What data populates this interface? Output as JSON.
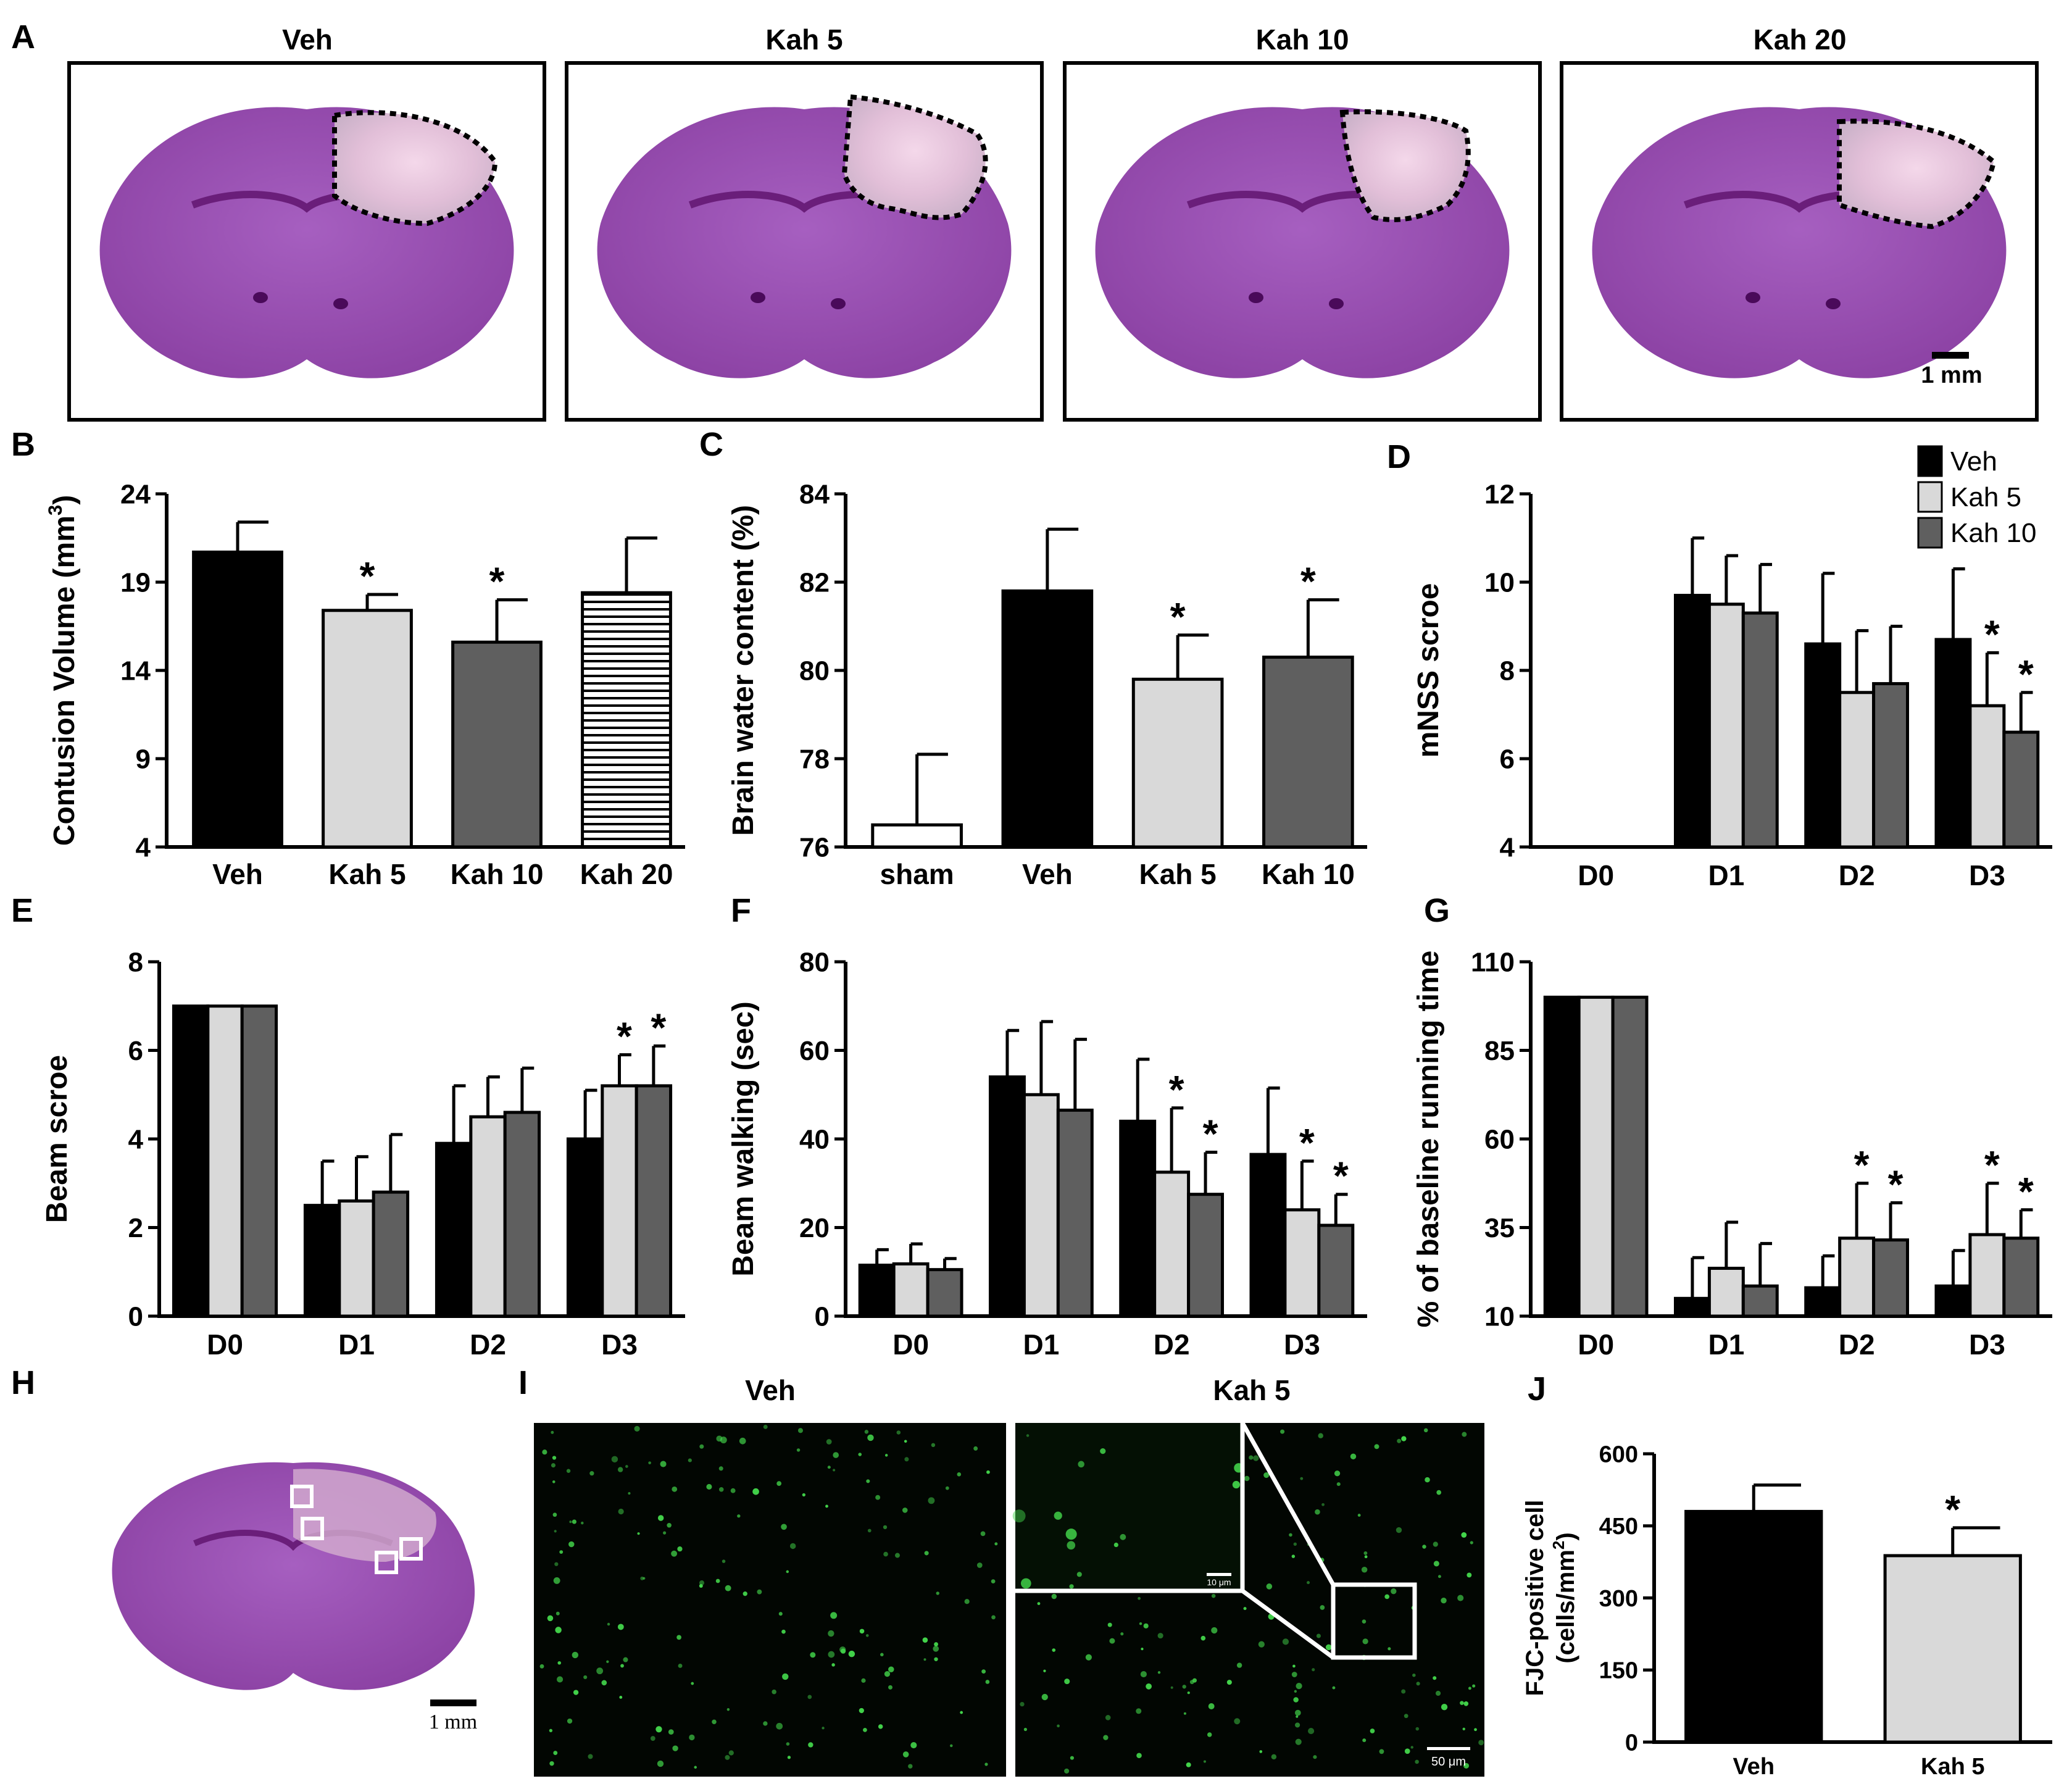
{
  "colors": {
    "veh": "#000000",
    "kah5": "#d9d9d9",
    "kah10": "#5f5f5f",
    "sham": "#ffffff",
    "kah20": "#ffffff",
    "micro_bg": "#020602",
    "micro_cells": "#43d64b",
    "brain": "#9b4fb0"
  },
  "panel_letters": {
    "A": "A",
    "B": "B",
    "C": "C",
    "D": "D",
    "E": "E",
    "F": "F",
    "G": "G",
    "H": "H",
    "I": "I",
    "J": "J"
  },
  "panel_a": {
    "titles": [
      "Veh",
      "Kah 5",
      "Kah 10",
      "Kah 20"
    ],
    "scale_label": "1 mm"
  },
  "panel_h": {
    "scale_label": "1 mm"
  },
  "panel_i": {
    "titles": [
      "Veh",
      "Kah 5"
    ],
    "inset_scale": "10 μm",
    "scale_label": "50 μm"
  },
  "chart_data": [
    {
      "id": "B",
      "type": "bar",
      "ylabel": "Contusion Volume (mm",
      "ylabel_sup": "3",
      "ylabel_end": ")",
      "ylim": [
        4,
        24
      ],
      "yticks": [
        4,
        9,
        14,
        19,
        24
      ],
      "categories": [
        "Veh",
        "Kah 5",
        "Kah 10",
        "Kah 20"
      ],
      "values": [
        20.7,
        17.4,
        15.6,
        18.4
      ],
      "errors": [
        1.7,
        0.9,
        2.4,
        3.1
      ],
      "fills": [
        "veh",
        "kah5",
        "kah10",
        "kah20"
      ],
      "star": [
        false,
        true,
        true,
        false
      ],
      "hatched": [
        false,
        false,
        false,
        true
      ]
    },
    {
      "id": "C",
      "type": "bar",
      "ylabel": "Brain water content (%)",
      "ylim": [
        76,
        84
      ],
      "yticks": [
        76,
        78,
        80,
        82,
        84
      ],
      "categories": [
        "sham",
        "Veh",
        "Kah 5",
        "Kah 10"
      ],
      "values": [
        76.5,
        81.8,
        79.8,
        80.3
      ],
      "errors": [
        1.6,
        1.4,
        1.0,
        1.3
      ],
      "fills": [
        "sham",
        "veh",
        "kah5",
        "kah10"
      ],
      "star": [
        false,
        false,
        true,
        true
      ]
    },
    {
      "id": "D",
      "type": "bar",
      "ylabel": "mNSS scroe",
      "ylim": [
        4,
        12
      ],
      "yticks": [
        4,
        6,
        8,
        10,
        12
      ],
      "categories": [
        "D0",
        "D1",
        "D2",
        "D3"
      ],
      "series": [
        {
          "name": "Veh",
          "fill": "veh",
          "values": [
            4,
            9.7,
            8.6,
            8.7
          ],
          "errors": [
            0,
            1.3,
            1.6,
            1.6
          ],
          "star": [
            false,
            false,
            false,
            false
          ]
        },
        {
          "name": "Kah 5",
          "fill": "kah5",
          "values": [
            4,
            9.5,
            7.5,
            7.2
          ],
          "errors": [
            0,
            1.1,
            1.4,
            1.2
          ],
          "star": [
            false,
            false,
            false,
            true
          ]
        },
        {
          "name": "Kah 10",
          "fill": "kah10",
          "values": [
            4,
            9.3,
            7.7,
            6.6
          ],
          "errors": [
            0,
            1.1,
            1.3,
            0.9
          ],
          "star": [
            false,
            false,
            false,
            true
          ]
        }
      ]
    },
    {
      "id": "E",
      "type": "bar",
      "ylabel": "Beam scroe",
      "ylim": [
        0,
        8
      ],
      "yticks": [
        0,
        2,
        4,
        6,
        8
      ],
      "categories": [
        "D0",
        "D1",
        "D2",
        "D3"
      ],
      "series": [
        {
          "name": "Veh",
          "fill": "veh",
          "values": [
            7,
            2.5,
            3.9,
            4.0
          ],
          "errors": [
            0,
            1.0,
            1.3,
            1.1
          ],
          "star": [
            false,
            false,
            false,
            false
          ]
        },
        {
          "name": "Kah 5",
          "fill": "kah5",
          "values": [
            7,
            2.6,
            4.5,
            5.2
          ],
          "errors": [
            0,
            1.0,
            0.9,
            0.7
          ],
          "star": [
            false,
            false,
            false,
            true
          ]
        },
        {
          "name": "Kah 10",
          "fill": "kah10",
          "values": [
            7,
            2.8,
            4.6,
            5.2
          ],
          "errors": [
            0,
            1.3,
            1.0,
            0.9
          ],
          "star": [
            false,
            false,
            false,
            true
          ]
        }
      ]
    },
    {
      "id": "F",
      "type": "bar",
      "ylabel": "Beam walking (sec)",
      "ylim": [
        0,
        80
      ],
      "yticks": [
        0,
        20,
        40,
        60,
        80
      ],
      "categories": [
        "D0",
        "D1",
        "D2",
        "D3"
      ],
      "series": [
        {
          "name": "Veh",
          "fill": "veh",
          "values": [
            11.5,
            54,
            44,
            36.5
          ],
          "errors": [
            3.5,
            10.5,
            14,
            15
          ],
          "star": [
            false,
            false,
            false,
            false
          ]
        },
        {
          "name": "Kah 5",
          "fill": "kah5",
          "values": [
            11.8,
            50,
            32.5,
            24
          ],
          "errors": [
            4.5,
            16.5,
            14.5,
            11
          ],
          "star": [
            false,
            false,
            true,
            true
          ]
        },
        {
          "name": "Kah 10",
          "fill": "kah10",
          "values": [
            10.5,
            46.5,
            27.5,
            20.5
          ],
          "errors": [
            2.5,
            16,
            9.5,
            7
          ],
          "star": [
            false,
            false,
            true,
            true
          ]
        }
      ]
    },
    {
      "id": "G",
      "type": "bar",
      "ylabel": "% of baseline running time",
      "ylim": [
        10,
        110
      ],
      "yticks": [
        10,
        35,
        60,
        85,
        110
      ],
      "categories": [
        "D0",
        "D1",
        "D2",
        "D3"
      ],
      "series": [
        {
          "name": "Veh",
          "fill": "veh",
          "values": [
            100,
            15,
            18,
            18.5
          ],
          "errors": [
            0,
            11.5,
            9,
            10
          ],
          "star": [
            false,
            false,
            false,
            false
          ]
        },
        {
          "name": "Kah 5",
          "fill": "kah5",
          "values": [
            100,
            23.5,
            32,
            33
          ],
          "errors": [
            0,
            13,
            15.5,
            14.5
          ],
          "star": [
            false,
            false,
            true,
            true
          ]
        },
        {
          "name": "Kah 10",
          "fill": "kah10",
          "values": [
            100,
            18.5,
            31.5,
            32
          ],
          "errors": [
            0,
            12,
            10.5,
            8
          ],
          "star": [
            false,
            false,
            true,
            true
          ]
        }
      ]
    },
    {
      "id": "J",
      "type": "bar",
      "ylabel": "FJC-positive cell",
      "ylabel2": "(cells/mm",
      "ylabel2_sup": "2",
      "ylabel2_end": ")",
      "ylim": [
        0,
        600
      ],
      "yticks": [
        0,
        150,
        300,
        450,
        600
      ],
      "categories": [
        "Veh",
        "Kah 5"
      ],
      "values": [
        480,
        388
      ],
      "errors": [
        55,
        58
      ],
      "fills": [
        "veh",
        "kah5"
      ],
      "star": [
        false,
        true
      ]
    }
  ],
  "legend": {
    "items": [
      {
        "label": "Veh",
        "fill": "veh"
      },
      {
        "label": "Kah 5",
        "fill": "kah5"
      },
      {
        "label": "Kah 10",
        "fill": "kah10"
      }
    ]
  },
  "star_symbol": "*"
}
